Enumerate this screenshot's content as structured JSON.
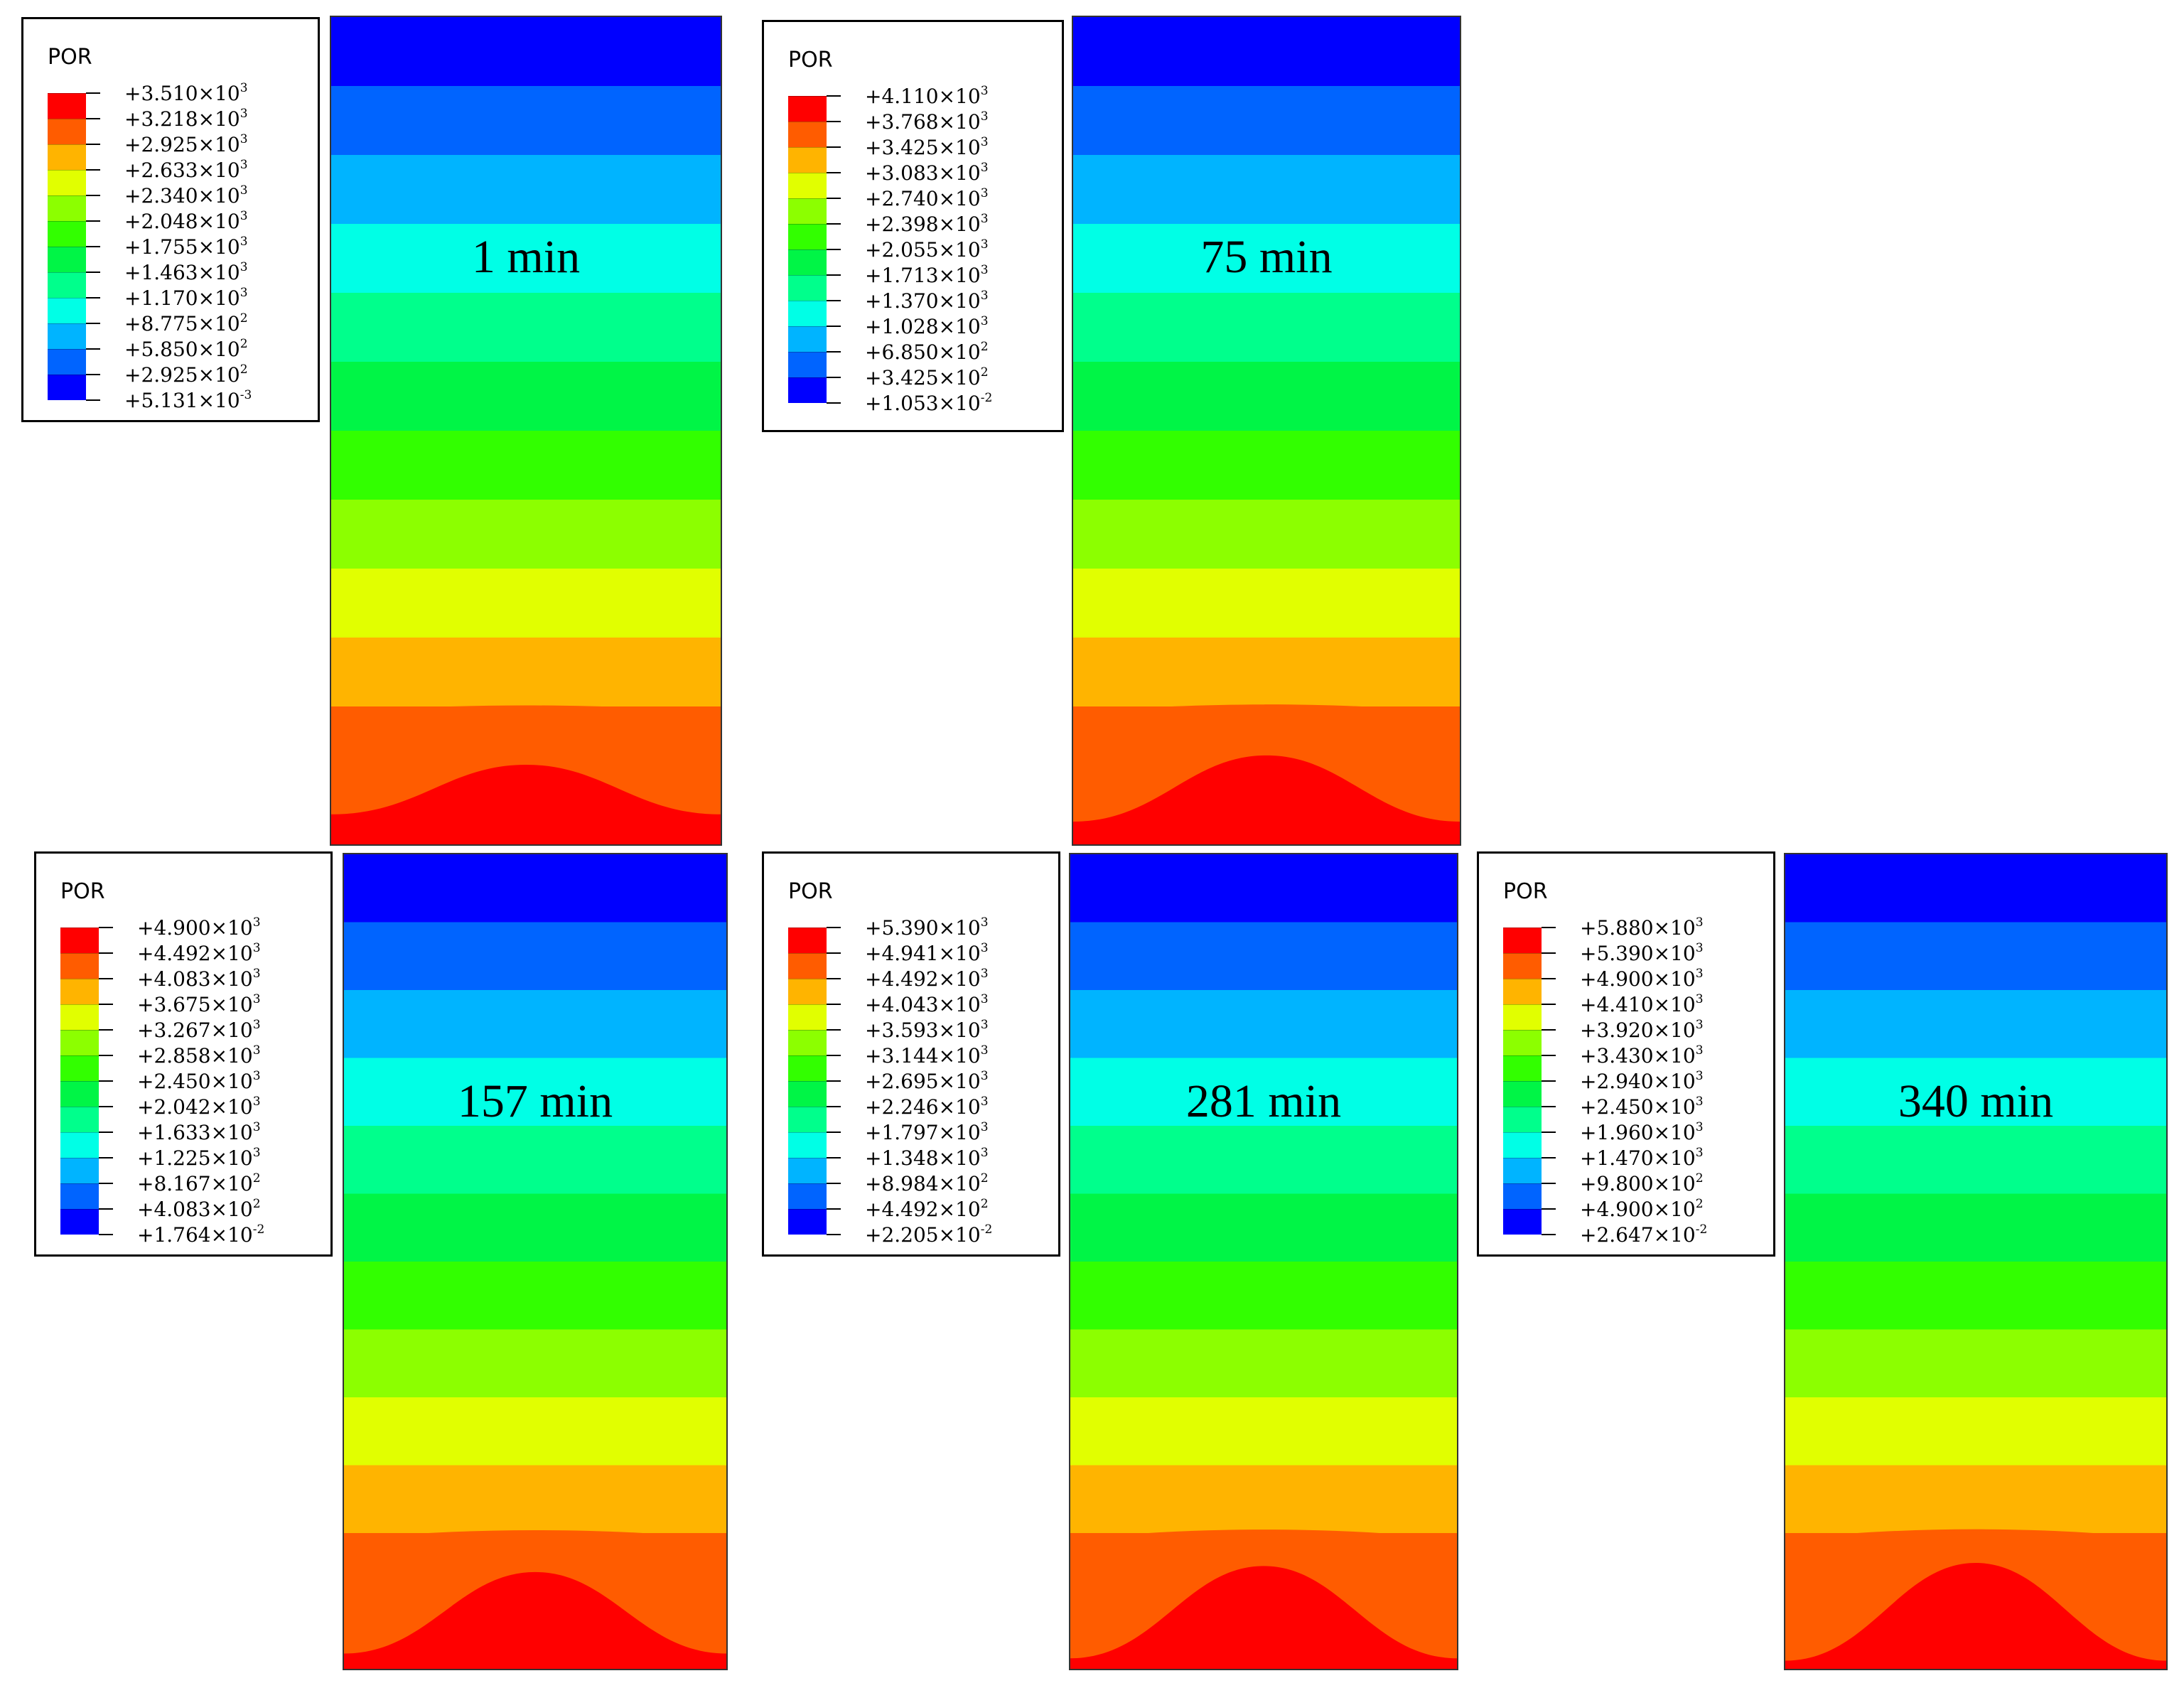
{
  "colors": [
    "#ff0000",
    "#ff5c00",
    "#ffb400",
    "#e1ff00",
    "#8cff00",
    "#32ff00",
    "#00f546",
    "#00ff8c",
    "#00ffe6",
    "#00b4ff",
    "#0064ff",
    "#0000ff"
  ],
  "panels": [
    {
      "id": "1min",
      "legend_title": "POR",
      "time_label": "1 min",
      "dome_level": 0.45,
      "legend_values": [
        {
          "m": "+3.510",
          "e": "3"
        },
        {
          "m": "+3.218",
          "e": "3"
        },
        {
          "m": "+2.925",
          "e": "3"
        },
        {
          "m": "+2.633",
          "e": "3"
        },
        {
          "m": "+2.340",
          "e": "3"
        },
        {
          "m": "+2.048",
          "e": "3"
        },
        {
          "m": "+1.755",
          "e": "3"
        },
        {
          "m": "+1.463",
          "e": "3"
        },
        {
          "m": "+1.170",
          "e": "3"
        },
        {
          "m": "+8.775",
          "e": "2"
        },
        {
          "m": "+5.850",
          "e": "2"
        },
        {
          "m": "+2.925",
          "e": "2"
        },
        {
          "m": "+5.131",
          "e": "-3"
        }
      ]
    },
    {
      "id": "75min",
      "legend_title": "POR",
      "time_label": "75 min",
      "dome_level": 0.6,
      "legend_values": [
        {
          "m": "+4.110",
          "e": "3"
        },
        {
          "m": "+3.768",
          "e": "3"
        },
        {
          "m": "+3.425",
          "e": "3"
        },
        {
          "m": "+3.083",
          "e": "3"
        },
        {
          "m": "+2.740",
          "e": "3"
        },
        {
          "m": "+2.398",
          "e": "3"
        },
        {
          "m": "+2.055",
          "e": "3"
        },
        {
          "m": "+1.713",
          "e": "3"
        },
        {
          "m": "+1.370",
          "e": "3"
        },
        {
          "m": "+1.028",
          "e": "3"
        },
        {
          "m": "+6.850",
          "e": "2"
        },
        {
          "m": "+3.425",
          "e": "2"
        },
        {
          "m": "+1.053",
          "e": "-2"
        }
      ]
    },
    {
      "id": "157min",
      "legend_title": "POR",
      "time_label": "157 min",
      "dome_level": 0.75,
      "legend_values": [
        {
          "m": "+4.900",
          "e": "3"
        },
        {
          "m": "+4.492",
          "e": "3"
        },
        {
          "m": "+4.083",
          "e": "3"
        },
        {
          "m": "+3.675",
          "e": "3"
        },
        {
          "m": "+3.267",
          "e": "3"
        },
        {
          "m": "+2.858",
          "e": "3"
        },
        {
          "m": "+2.450",
          "e": "3"
        },
        {
          "m": "+2.042",
          "e": "3"
        },
        {
          "m": "+1.633",
          "e": "3"
        },
        {
          "m": "+1.225",
          "e": "3"
        },
        {
          "m": "+8.167",
          "e": "2"
        },
        {
          "m": "+4.083",
          "e": "2"
        },
        {
          "m": "+1.764",
          "e": "-2"
        }
      ]
    },
    {
      "id": "281min",
      "legend_title": "POR",
      "time_label": "281 min",
      "dome_level": 0.85,
      "legend_values": [
        {
          "m": "+5.390",
          "e": "3"
        },
        {
          "m": "+4.941",
          "e": "3"
        },
        {
          "m": "+4.492",
          "e": "3"
        },
        {
          "m": "+4.043",
          "e": "3"
        },
        {
          "m": "+3.593",
          "e": "3"
        },
        {
          "m": "+3.144",
          "e": "3"
        },
        {
          "m": "+2.695",
          "e": "3"
        },
        {
          "m": "+2.246",
          "e": "3"
        },
        {
          "m": "+1.797",
          "e": "3"
        },
        {
          "m": "+1.348",
          "e": "3"
        },
        {
          "m": "+8.984",
          "e": "2"
        },
        {
          "m": "+4.492",
          "e": "2"
        },
        {
          "m": "+2.205",
          "e": "-2"
        }
      ]
    },
    {
      "id": "340min",
      "legend_title": "POR",
      "time_label": "340 min",
      "dome_level": 0.9,
      "legend_values": [
        {
          "m": "+5.880",
          "e": "3"
        },
        {
          "m": "+5.390",
          "e": "3"
        },
        {
          "m": "+4.900",
          "e": "3"
        },
        {
          "m": "+4.410",
          "e": "3"
        },
        {
          "m": "+3.920",
          "e": "3"
        },
        {
          "m": "+3.430",
          "e": "3"
        },
        {
          "m": "+2.940",
          "e": "3"
        },
        {
          "m": "+2.450",
          "e": "3"
        },
        {
          "m": "+1.960",
          "e": "3"
        },
        {
          "m": "+1.470",
          "e": "3"
        },
        {
          "m": "+9.800",
          "e": "2"
        },
        {
          "m": "+4.900",
          "e": "2"
        },
        {
          "m": "+2.647",
          "e": "-2"
        }
      ]
    }
  ]
}
